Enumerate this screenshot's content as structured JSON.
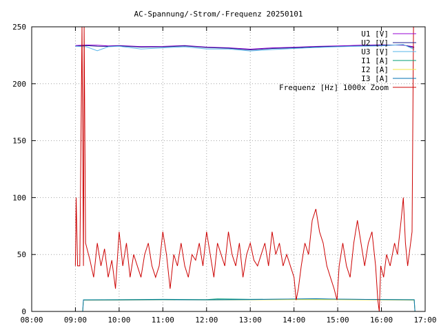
{
  "chart_data": {
    "type": "line",
    "title": "AC-Spannung/-Strom/-Frequenz 20250101",
    "xlabel": "",
    "ylabel": "",
    "x_ticks": [
      "08:00",
      "09:00",
      "10:00",
      "11:00",
      "12:00",
      "13:00",
      "14:00",
      "15:00",
      "16:00",
      "17:00"
    ],
    "y_ticks": [
      "0",
      "50",
      "100",
      "150",
      "200",
      "250"
    ],
    "xlim": [
      "08:00",
      "17:00"
    ],
    "ylim": [
      0,
      250
    ],
    "grid": true,
    "legend_position": "top-right",
    "series": [
      {
        "name": "U1 [V]",
        "color": "#9400d3",
        "points": [
          [
            "09:00",
            233.5
          ],
          [
            "09:15",
            234.0
          ],
          [
            "09:30",
            233.8
          ],
          [
            "09:45",
            233.2
          ],
          [
            "10:00",
            233.5
          ],
          [
            "10:30",
            232.6
          ],
          [
            "11:00",
            232.8
          ],
          [
            "11:30",
            233.6
          ],
          [
            "12:00",
            232.2
          ],
          [
            "12:30",
            231.6
          ],
          [
            "13:00",
            230.4
          ],
          [
            "13:30",
            231.5
          ],
          [
            "14:00",
            232.0
          ],
          [
            "14:30",
            232.8
          ],
          [
            "15:00",
            233.2
          ],
          [
            "15:30",
            233.8
          ],
          [
            "16:00",
            234.2
          ],
          [
            "16:30",
            233.8
          ],
          [
            "16:45",
            232.5
          ]
        ]
      },
      {
        "name": "U2 [V]",
        "color": "#1a1a8c",
        "points": [
          [
            "09:00",
            233.0
          ],
          [
            "09:15",
            233.5
          ],
          [
            "09:30",
            233.0
          ],
          [
            "09:45",
            232.8
          ],
          [
            "10:00",
            233.2
          ],
          [
            "10:30",
            232.2
          ],
          [
            "11:00",
            232.4
          ],
          [
            "11:30",
            233.2
          ],
          [
            "12:00",
            231.8
          ],
          [
            "12:30",
            231.2
          ],
          [
            "13:00",
            229.8
          ],
          [
            "13:30",
            231.0
          ],
          [
            "14:00",
            231.6
          ],
          [
            "14:30",
            232.4
          ],
          [
            "15:00",
            232.8
          ],
          [
            "15:30",
            233.2
          ],
          [
            "16:00",
            233.8
          ],
          [
            "16:30",
            234.2
          ],
          [
            "16:45",
            231.5
          ]
        ]
      },
      {
        "name": "U3 [V]",
        "color": "#56b4e9",
        "points": [
          [
            "09:00",
            233.0
          ],
          [
            "09:15",
            232.5
          ],
          [
            "09:30",
            229.0
          ],
          [
            "09:45",
            232.5
          ],
          [
            "10:00",
            233.0
          ],
          [
            "10:30",
            230.5
          ],
          [
            "11:00",
            231.5
          ],
          [
            "11:30",
            232.5
          ],
          [
            "12:00",
            230.5
          ],
          [
            "12:30",
            230.5
          ],
          [
            "13:00",
            228.8
          ],
          [
            "13:30",
            230.0
          ],
          [
            "14:00",
            231.0
          ],
          [
            "14:30",
            231.8
          ],
          [
            "15:00",
            232.5
          ],
          [
            "15:30",
            233.0
          ],
          [
            "16:00",
            233.2
          ],
          [
            "16:30",
            234.5
          ],
          [
            "16:45",
            230.0
          ]
        ]
      },
      {
        "name": "I1 [A]",
        "color": "#009e73",
        "points": [
          [
            "09:00",
            0
          ],
          [
            "09:10",
            0
          ],
          [
            "09:11",
            10.2
          ],
          [
            "10:00",
            10.3
          ],
          [
            "11:00",
            10.6
          ],
          [
            "12:00",
            10.4
          ],
          [
            "12:15",
            11.0
          ],
          [
            "13:00",
            10.6
          ],
          [
            "14:00",
            10.8
          ],
          [
            "14:30",
            11.0
          ],
          [
            "15:00",
            10.7
          ],
          [
            "16:00",
            10.5
          ],
          [
            "16:45",
            10.3
          ],
          [
            "16:46",
            0
          ]
        ]
      },
      {
        "name": "I2 [A]",
        "color": "#f0e442",
        "points": [
          [
            "09:00",
            0
          ],
          [
            "09:10",
            0
          ],
          [
            "09:11",
            9.8
          ],
          [
            "10:00",
            9.9
          ],
          [
            "11:00",
            10.2
          ],
          [
            "12:00",
            10.0
          ],
          [
            "13:00",
            10.2
          ],
          [
            "14:00",
            10.4
          ],
          [
            "15:00",
            10.3
          ],
          [
            "16:00",
            10.1
          ],
          [
            "16:45",
            9.9
          ],
          [
            "16:46",
            0
          ]
        ]
      },
      {
        "name": "I3 [A]",
        "color": "#0072b2",
        "points": [
          [
            "09:00",
            0
          ],
          [
            "09:10",
            0
          ],
          [
            "09:11",
            10.0
          ],
          [
            "10:00",
            10.1
          ],
          [
            "11:00",
            10.3
          ],
          [
            "12:00",
            10.2
          ],
          [
            "13:00",
            10.4
          ],
          [
            "14:00",
            10.9
          ],
          [
            "14:30",
            11.2
          ],
          [
            "15:00",
            10.8
          ],
          [
            "16:00",
            10.4
          ],
          [
            "16:45",
            10.2
          ],
          [
            "16:46",
            0
          ]
        ]
      },
      {
        "name": "Frequenz [Hz] 1000x Zoom",
        "color": "#cc0000",
        "points": [
          [
            "09:00",
            40
          ],
          [
            "09:01",
            100
          ],
          [
            "09:03",
            40
          ],
          [
            "09:06",
            40
          ],
          [
            "09:09",
            250
          ],
          [
            "09:11",
            40
          ],
          [
            "09:12",
            250
          ],
          [
            "09:14",
            60
          ],
          [
            "09:20",
            45
          ],
          [
            "09:25",
            30
          ],
          [
            "09:30",
            60
          ],
          [
            "09:35",
            40
          ],
          [
            "09:40",
            55
          ],
          [
            "09:45",
            30
          ],
          [
            "09:50",
            45
          ],
          [
            "09:55",
            20
          ],
          [
            "10:00",
            70
          ],
          [
            "10:05",
            40
          ],
          [
            "10:10",
            60
          ],
          [
            "10:15",
            30
          ],
          [
            "10:20",
            50
          ],
          [
            "10:25",
            40
          ],
          [
            "10:30",
            30
          ],
          [
            "10:35",
            50
          ],
          [
            "10:40",
            60
          ],
          [
            "10:45",
            40
          ],
          [
            "10:50",
            30
          ],
          [
            "10:55",
            40
          ],
          [
            "11:00",
            70
          ],
          [
            "11:05",
            50
          ],
          [
            "11:10",
            20
          ],
          [
            "11:15",
            50
          ],
          [
            "11:20",
            40
          ],
          [
            "11:25",
            60
          ],
          [
            "11:30",
            40
          ],
          [
            "11:35",
            30
          ],
          [
            "11:40",
            50
          ],
          [
            "11:45",
            45
          ],
          [
            "11:50",
            60
          ],
          [
            "11:55",
            40
          ],
          [
            "12:00",
            70
          ],
          [
            "12:05",
            50
          ],
          [
            "12:10",
            30
          ],
          [
            "12:15",
            60
          ],
          [
            "12:20",
            50
          ],
          [
            "12:25",
            40
          ],
          [
            "12:30",
            70
          ],
          [
            "12:35",
            50
          ],
          [
            "12:40",
            40
          ],
          [
            "12:45",
            60
          ],
          [
            "12:50",
            30
          ],
          [
            "12:55",
            50
          ],
          [
            "13:00",
            60
          ],
          [
            "13:05",
            45
          ],
          [
            "13:10",
            40
          ],
          [
            "13:15",
            50
          ],
          [
            "13:20",
            60
          ],
          [
            "13:25",
            40
          ],
          [
            "13:30",
            70
          ],
          [
            "13:35",
            50
          ],
          [
            "13:40",
            60
          ],
          [
            "13:45",
            40
          ],
          [
            "13:50",
            50
          ],
          [
            "13:55",
            40
          ],
          [
            "14:00",
            30
          ],
          [
            "14:03",
            10
          ],
          [
            "14:06",
            20
          ],
          [
            "14:10",
            40
          ],
          [
            "14:15",
            60
          ],
          [
            "14:20",
            50
          ],
          [
            "14:25",
            80
          ],
          [
            "14:30",
            90
          ],
          [
            "14:35",
            70
          ],
          [
            "14:40",
            60
          ],
          [
            "14:45",
            40
          ],
          [
            "14:50",
            30
          ],
          [
            "14:55",
            20
          ],
          [
            "14:59",
            10
          ],
          [
            "15:02",
            40
          ],
          [
            "15:07",
            60
          ],
          [
            "15:12",
            40
          ],
          [
            "15:17",
            30
          ],
          [
            "15:22",
            60
          ],
          [
            "15:27",
            80
          ],
          [
            "15:32",
            60
          ],
          [
            "15:37",
            40
          ],
          [
            "15:42",
            60
          ],
          [
            "15:47",
            70
          ],
          [
            "15:52",
            40
          ],
          [
            "15:55",
            10
          ],
          [
            "15:57",
            0
          ],
          [
            "15:59",
            40
          ],
          [
            "16:03",
            30
          ],
          [
            "16:07",
            50
          ],
          [
            "16:12",
            40
          ],
          [
            "16:18",
            60
          ],
          [
            "16:22",
            50
          ],
          [
            "16:27",
            80
          ],
          [
            "16:30",
            100
          ],
          [
            "16:33",
            60
          ],
          [
            "16:36",
            40
          ],
          [
            "16:40",
            60
          ],
          [
            "16:42",
            70
          ],
          [
            "16:44",
            250
          ],
          [
            "16:46",
            250
          ]
        ]
      }
    ]
  }
}
